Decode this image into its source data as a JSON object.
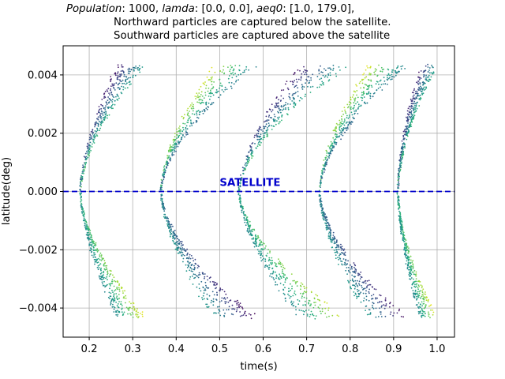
{
  "chart_data": {
    "type": "scatter",
    "title": {
      "line1_parts": [
        {
          "text": "Population",
          "italic": true
        },
        {
          "text": ": 1000, ",
          "italic": false
        },
        {
          "text": "lamda",
          "italic": true
        },
        {
          "text": ": [0.0, 0.0], ",
          "italic": false
        },
        {
          "text": "aeq0",
          "italic": true
        },
        {
          "text": ": [1.0, 179.0],",
          "italic": false
        }
      ],
      "line2": "Northward particles are captured below the satellite.",
      "line3": "Southward particles are captured above the satellite"
    },
    "xlabel": "time(s)",
    "ylabel": "latitude(deg)",
    "xlim": [
      0.14,
      1.04
    ],
    "ylim": [
      -0.005,
      0.005
    ],
    "xticks": [
      0.2,
      0.3,
      0.4,
      0.5,
      0.6,
      0.7,
      0.8,
      0.9,
      1.0
    ],
    "xtick_labels": [
      "0.2",
      "0.3",
      "0.4",
      "0.5",
      "0.6",
      "0.7",
      "0.8",
      "0.9",
      "1.0"
    ],
    "yticks": [
      -0.004,
      -0.002,
      0.0,
      0.002,
      0.004
    ],
    "ytick_labels": [
      "−0.004",
      "−0.002",
      "0.000",
      "0.002",
      "0.004"
    ],
    "grid": true,
    "satellite": {
      "label": "SATELLITE",
      "latitude": 0.0,
      "label_time": 0.5,
      "color": "#0000cc"
    },
    "colormap": "viridis",
    "population": 1000,
    "bounces": [
      {
        "t0": 0.18,
        "width": 0.15
      },
      {
        "t0": 0.365,
        "width": 0.22
      },
      {
        "t0": 0.545,
        "width": 0.25
      },
      {
        "t0": 0.73,
        "width": 0.2
      },
      {
        "t0": 0.91,
        "width": 0.09
      }
    ],
    "lat_max": 0.0044
  }
}
